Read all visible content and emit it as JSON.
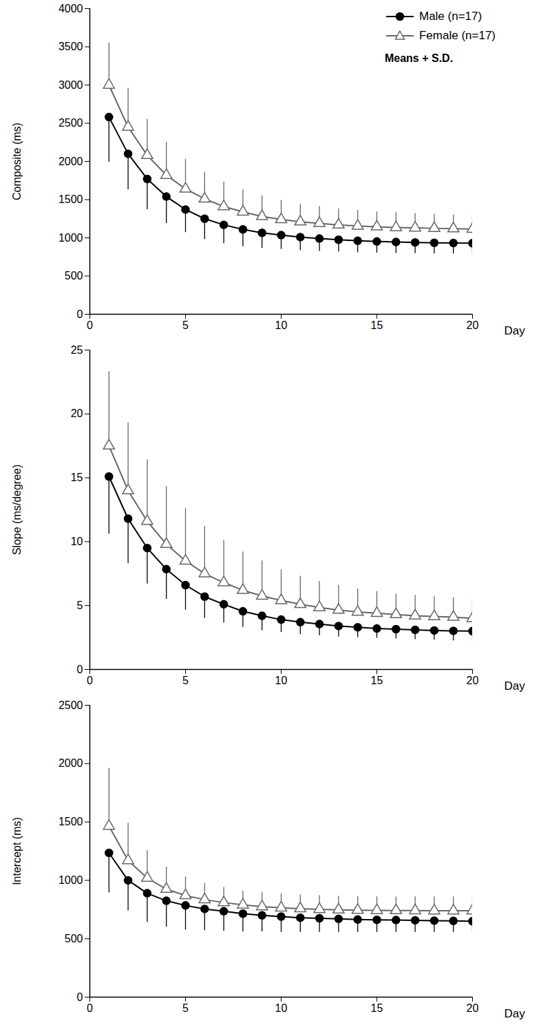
{
  "chart_data": [
    {
      "type": "line",
      "y_label": "Composite (ms)",
      "x_label": "Day",
      "legend": "top-right",
      "annotation": "Means + S.D.",
      "x": [
        1,
        2,
        3,
        4,
        5,
        6,
        7,
        8,
        9,
        10,
        11,
        12,
        13,
        14,
        15,
        16,
        17,
        18,
        19,
        20
      ],
      "xlim": [
        0,
        20
      ],
      "xticks": [
        0,
        5,
        10,
        15,
        20
      ],
      "ylim": [
        0,
        4000
      ],
      "yticks": [
        0,
        500,
        1000,
        1500,
        2000,
        2500,
        3000,
        3500,
        4000
      ],
      "series": [
        {
          "name": "Male (n=17)",
          "color": "#000000",
          "marker": "circle",
          "line_style": "solid",
          "values": [
            2580,
            2100,
            1770,
            1540,
            1370,
            1250,
            1170,
            1110,
            1065,
            1035,
            1010,
            990,
            975,
            962,
            952,
            945,
            940,
            935,
            932,
            930
          ],
          "error_minus": [
            590,
            470,
            400,
            350,
            300,
            270,
            245,
            225,
            200,
            185,
            175,
            165,
            160,
            155,
            150,
            148,
            145,
            143,
            142,
            140
          ]
        },
        {
          "name": "Female (n=17)",
          "color": "#666666",
          "marker": "open_triangle",
          "line_style": "solid",
          "values": [
            3000,
            2450,
            2080,
            1820,
            1640,
            1510,
            1410,
            1340,
            1280,
            1240,
            1210,
            1190,
            1170,
            1155,
            1145,
            1135,
            1130,
            1125,
            1120,
            1115
          ],
          "error_plus": [
            550,
            510,
            470,
            430,
            390,
            350,
            320,
            290,
            270,
            250,
            230,
            220,
            210,
            205,
            195,
            195,
            190,
            185,
            180,
            185
          ]
        }
      ]
    },
    {
      "type": "line",
      "y_label": "Slope (ms/degree)",
      "x_label": "Day",
      "x": [
        1,
        2,
        3,
        4,
        5,
        6,
        7,
        8,
        9,
        10,
        11,
        12,
        13,
        14,
        15,
        16,
        17,
        18,
        19,
        20
      ],
      "xlim": [
        0,
        20
      ],
      "xticks": [
        0,
        5,
        10,
        15,
        20
      ],
      "ylim": [
        0,
        25
      ],
      "yticks": [
        0,
        5,
        10,
        15,
        20,
        25
      ],
      "series": [
        {
          "name": "Male (n=17)",
          "color": "#000000",
          "marker": "circle",
          "line_style": "solid",
          "values": [
            15.1,
            11.8,
            9.5,
            7.85,
            6.6,
            5.7,
            5.1,
            4.55,
            4.2,
            3.9,
            3.7,
            3.55,
            3.4,
            3.3,
            3.2,
            3.15,
            3.1,
            3.05,
            3.02,
            3.0
          ],
          "error_minus": [
            4.5,
            3.5,
            2.8,
            2.35,
            1.95,
            1.7,
            1.45,
            1.25,
            1.15,
            1.0,
            0.95,
            0.9,
            0.85,
            0.8,
            0.75,
            0.75,
            0.75,
            0.75,
            0.77,
            0.8
          ]
        },
        {
          "name": "Female (n=17)",
          "color": "#666666",
          "marker": "open_triangle",
          "line_style": "solid",
          "values": [
            17.5,
            14.0,
            11.6,
            9.8,
            8.5,
            7.5,
            6.8,
            6.2,
            5.75,
            5.4,
            5.1,
            4.85,
            4.65,
            4.5,
            4.4,
            4.3,
            4.2,
            4.15,
            4.1,
            4.0
          ],
          "error_plus": [
            5.8,
            5.3,
            4.8,
            4.5,
            4.1,
            3.7,
            3.3,
            3.0,
            2.75,
            2.4,
            2.2,
            2.05,
            1.95,
            1.8,
            1.7,
            1.6,
            1.6,
            1.55,
            1.5,
            1.5
          ]
        }
      ]
    },
    {
      "type": "line",
      "y_label": "Intercept (ms)",
      "x_label": "Day",
      "x": [
        1,
        2,
        3,
        4,
        5,
        6,
        7,
        8,
        9,
        10,
        11,
        12,
        13,
        14,
        15,
        16,
        17,
        18,
        19,
        20
      ],
      "xlim": [
        0,
        20
      ],
      "xticks": [
        0,
        5,
        10,
        15,
        20
      ],
      "ylim": [
        0,
        2500
      ],
      "yticks": [
        0,
        500,
        1000,
        1500,
        2000,
        2500
      ],
      "series": [
        {
          "name": "Male (n=17)",
          "color": "#000000",
          "marker": "circle",
          "line_style": "solid",
          "values": [
            1235,
            1000,
            890,
            825,
            785,
            755,
            735,
            715,
            700,
            690,
            680,
            675,
            670,
            665,
            662,
            660,
            658,
            655,
            653,
            650
          ],
          "error_minus": [
            340,
            260,
            250,
            225,
            210,
            185,
            170,
            155,
            140,
            135,
            125,
            120,
            115,
            110,
            107,
            105,
            103,
            100,
            98,
            95
          ]
        },
        {
          "name": "Female (n=17)",
          "color": "#666666",
          "marker": "open_triangle",
          "line_style": "solid",
          "values": [
            1465,
            1170,
            1020,
            925,
            870,
            835,
            810,
            790,
            775,
            765,
            758,
            752,
            748,
            745,
            743,
            742,
            741,
            740,
            740,
            740
          ],
          "error_plus": [
            495,
            320,
            235,
            190,
            160,
            140,
            130,
            120,
            120,
            120,
            117,
            118,
            117,
            117,
            117,
            118,
            119,
            120,
            120,
            120
          ]
        }
      ]
    }
  ]
}
